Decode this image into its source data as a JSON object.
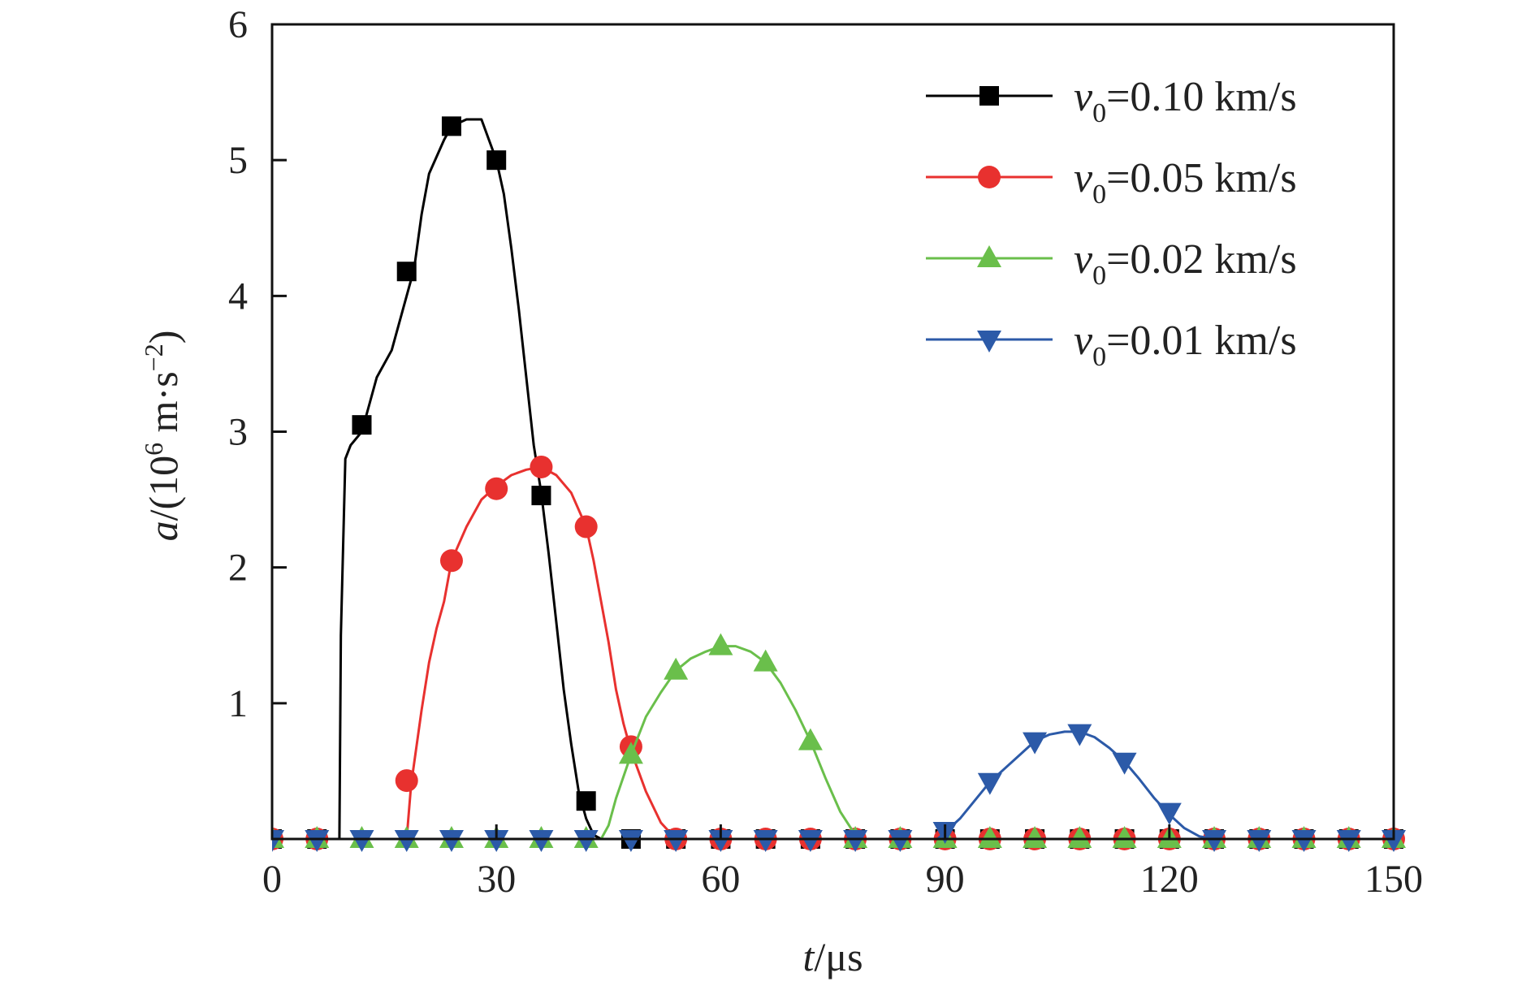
{
  "chart_data": {
    "type": "line",
    "title": "",
    "xlabel": {
      "var": "t",
      "unit": "/μs"
    },
    "ylabel": {
      "var": "a",
      "unit_pre": "/(10",
      "unit_sup1": "6",
      "unit_mid": " m·s",
      "unit_sup2": "−2",
      "unit_post": ")"
    },
    "xlim": [
      0,
      150
    ],
    "ylim": [
      0,
      6
    ],
    "xticks": [
      "0",
      "30",
      "60",
      "90",
      "120",
      "150"
    ],
    "yticks": [
      "1",
      "2",
      "3",
      "4",
      "5",
      "6"
    ],
    "grid": false,
    "legend_position": "top-right",
    "series": [
      {
        "name": "v0=0.10 km/s",
        "label_var": "v",
        "label_sub": "0",
        "label_rest": "=0.10 km/s",
        "color": "#000000",
        "marker": "square",
        "line": [
          [
            0,
            0
          ],
          [
            9,
            0
          ],
          [
            9.2,
            1.5
          ],
          [
            9.8,
            2.8
          ],
          [
            10.5,
            2.9
          ],
          [
            12,
            3.0
          ],
          [
            13,
            3.2
          ],
          [
            14,
            3.4
          ],
          [
            16,
            3.6
          ],
          [
            18,
            4.0
          ],
          [
            19,
            4.2
          ],
          [
            20,
            4.6
          ],
          [
            21,
            4.9
          ],
          [
            23,
            5.15
          ],
          [
            24,
            5.25
          ],
          [
            26,
            5.3
          ],
          [
            28,
            5.3
          ],
          [
            29,
            5.15
          ],
          [
            30,
            5.0
          ],
          [
            31,
            4.75
          ],
          [
            32,
            4.35
          ],
          [
            33,
            3.9
          ],
          [
            34,
            3.4
          ],
          [
            35,
            2.9
          ],
          [
            36,
            2.55
          ],
          [
            37,
            2.1
          ],
          [
            38,
            1.6
          ],
          [
            39,
            1.1
          ],
          [
            40,
            0.7
          ],
          [
            41,
            0.35
          ],
          [
            42,
            0.15
          ],
          [
            43,
            0.03
          ],
          [
            44,
            0
          ]
        ],
        "markers": [
          [
            0,
            0
          ],
          [
            6,
            0
          ],
          [
            12,
            3.05
          ],
          [
            18,
            4.18
          ],
          [
            24,
            5.25
          ],
          [
            30,
            5.0
          ],
          [
            36,
            2.53
          ],
          [
            42,
            0.28
          ],
          [
            48,
            0
          ],
          [
            54,
            0
          ],
          [
            60,
            0
          ],
          [
            66,
            0
          ],
          [
            72,
            0
          ],
          [
            78,
            0
          ],
          [
            84,
            0
          ],
          [
            90,
            0
          ],
          [
            96,
            0
          ],
          [
            102,
            0
          ],
          [
            108,
            0
          ],
          [
            114,
            0
          ],
          [
            120,
            0
          ],
          [
            126,
            0
          ],
          [
            132,
            0
          ],
          [
            138,
            0
          ],
          [
            144,
            0
          ],
          [
            150,
            0
          ]
        ]
      },
      {
        "name": "v0=0.05 km/s",
        "label_var": "v",
        "label_sub": "0",
        "label_rest": "=0.05 km/s",
        "color": "#e8312f",
        "marker": "circle",
        "line": [
          [
            0,
            0
          ],
          [
            18,
            0
          ],
          [
            18.6,
            0.4
          ],
          [
            20,
            0.95
          ],
          [
            21,
            1.3
          ],
          [
            22,
            1.55
          ],
          [
            23,
            1.75
          ],
          [
            24,
            2.05
          ],
          [
            26,
            2.3
          ],
          [
            28,
            2.5
          ],
          [
            30,
            2.6
          ],
          [
            32,
            2.68
          ],
          [
            34,
            2.72
          ],
          [
            36,
            2.74
          ],
          [
            38,
            2.68
          ],
          [
            40,
            2.55
          ],
          [
            42,
            2.3
          ],
          [
            43,
            2.05
          ],
          [
            44,
            1.75
          ],
          [
            45,
            1.45
          ],
          [
            46,
            1.1
          ],
          [
            47,
            0.85
          ],
          [
            48,
            0.65
          ],
          [
            50,
            0.35
          ],
          [
            52,
            0.12
          ],
          [
            54,
            0
          ]
        ],
        "markers": [
          [
            0,
            0
          ],
          [
            6,
            0
          ],
          [
            18,
            0.43
          ],
          [
            24,
            2.05
          ],
          [
            30,
            2.58
          ],
          [
            36,
            2.74
          ],
          [
            42,
            2.3
          ],
          [
            48,
            0.68
          ],
          [
            54,
            0
          ],
          [
            60,
            0
          ],
          [
            66,
            0
          ],
          [
            72,
            0
          ],
          [
            78,
            0
          ],
          [
            84,
            0
          ],
          [
            90,
            0
          ],
          [
            96,
            0
          ],
          [
            102,
            0
          ],
          [
            108,
            0
          ],
          [
            114,
            0
          ],
          [
            120,
            0
          ],
          [
            126,
            0
          ],
          [
            132,
            0
          ],
          [
            138,
            0
          ],
          [
            144,
            0
          ],
          [
            150,
            0
          ]
        ]
      },
      {
        "name": "v0=0.02 km/s",
        "label_var": "v",
        "label_sub": "0",
        "label_rest": "=0.02 km/s",
        "color": "#6abf4b",
        "marker": "triangle-up",
        "line": [
          [
            0,
            0
          ],
          [
            44,
            0
          ],
          [
            45,
            0.1
          ],
          [
            46,
            0.3
          ],
          [
            48,
            0.62
          ],
          [
            50,
            0.9
          ],
          [
            52,
            1.08
          ],
          [
            54,
            1.24
          ],
          [
            56,
            1.33
          ],
          [
            58,
            1.38
          ],
          [
            60,
            1.42
          ],
          [
            62,
            1.42
          ],
          [
            64,
            1.38
          ],
          [
            66,
            1.3
          ],
          [
            68,
            1.15
          ],
          [
            70,
            0.95
          ],
          [
            72,
            0.72
          ],
          [
            74,
            0.45
          ],
          [
            76,
            0.2
          ],
          [
            78,
            0.03
          ],
          [
            79,
            0
          ]
        ],
        "markers": [
          [
            0,
            0
          ],
          [
            6,
            0
          ],
          [
            12,
            0
          ],
          [
            18,
            0
          ],
          [
            24,
            0
          ],
          [
            30,
            0
          ],
          [
            36,
            0
          ],
          [
            42,
            0
          ],
          [
            48,
            0.62
          ],
          [
            54,
            1.24
          ],
          [
            60,
            1.42
          ],
          [
            66,
            1.3
          ],
          [
            72,
            0.72
          ],
          [
            78,
            0
          ],
          [
            84,
            0
          ],
          [
            90,
            0
          ],
          [
            96,
            0
          ],
          [
            102,
            0
          ],
          [
            108,
            0
          ],
          [
            114,
            0
          ],
          [
            120,
            0
          ],
          [
            126,
            0
          ],
          [
            132,
            0
          ],
          [
            138,
            0
          ],
          [
            144,
            0
          ],
          [
            150,
            0
          ]
        ]
      },
      {
        "name": "v0=0.01 km/s",
        "label_var": "v",
        "label_sub": "0",
        "label_rest": "=0.01 km/s",
        "color": "#2c5aa8",
        "marker": "triangle-down",
        "line": [
          [
            0,
            0
          ],
          [
            89,
            0
          ],
          [
            92,
            0.15
          ],
          [
            96,
            0.42
          ],
          [
            100,
            0.62
          ],
          [
            102,
            0.72
          ],
          [
            104,
            0.77
          ],
          [
            106,
            0.79
          ],
          [
            108,
            0.79
          ],
          [
            110,
            0.75
          ],
          [
            112,
            0.67
          ],
          [
            114,
            0.57
          ],
          [
            116,
            0.44
          ],
          [
            118,
            0.3
          ],
          [
            120,
            0.18
          ],
          [
            122,
            0.08
          ],
          [
            124,
            0.02
          ],
          [
            126,
            0
          ]
        ],
        "markers": [
          [
            0,
            0
          ],
          [
            6,
            0
          ],
          [
            12,
            0
          ],
          [
            18,
            0
          ],
          [
            24,
            0
          ],
          [
            30,
            0
          ],
          [
            36,
            0
          ],
          [
            42,
            0
          ],
          [
            48,
            0
          ],
          [
            54,
            0
          ],
          [
            60,
            0
          ],
          [
            66,
            0
          ],
          [
            72,
            0
          ],
          [
            78,
            0
          ],
          [
            84,
            0
          ],
          [
            90,
            0.06
          ],
          [
            96,
            0.42
          ],
          [
            102,
            0.72
          ],
          [
            108,
            0.78
          ],
          [
            114,
            0.57
          ],
          [
            120,
            0.2
          ],
          [
            126,
            0
          ],
          [
            132,
            0
          ],
          [
            138,
            0
          ],
          [
            144,
            0
          ],
          [
            150,
            0
          ]
        ]
      }
    ]
  }
}
